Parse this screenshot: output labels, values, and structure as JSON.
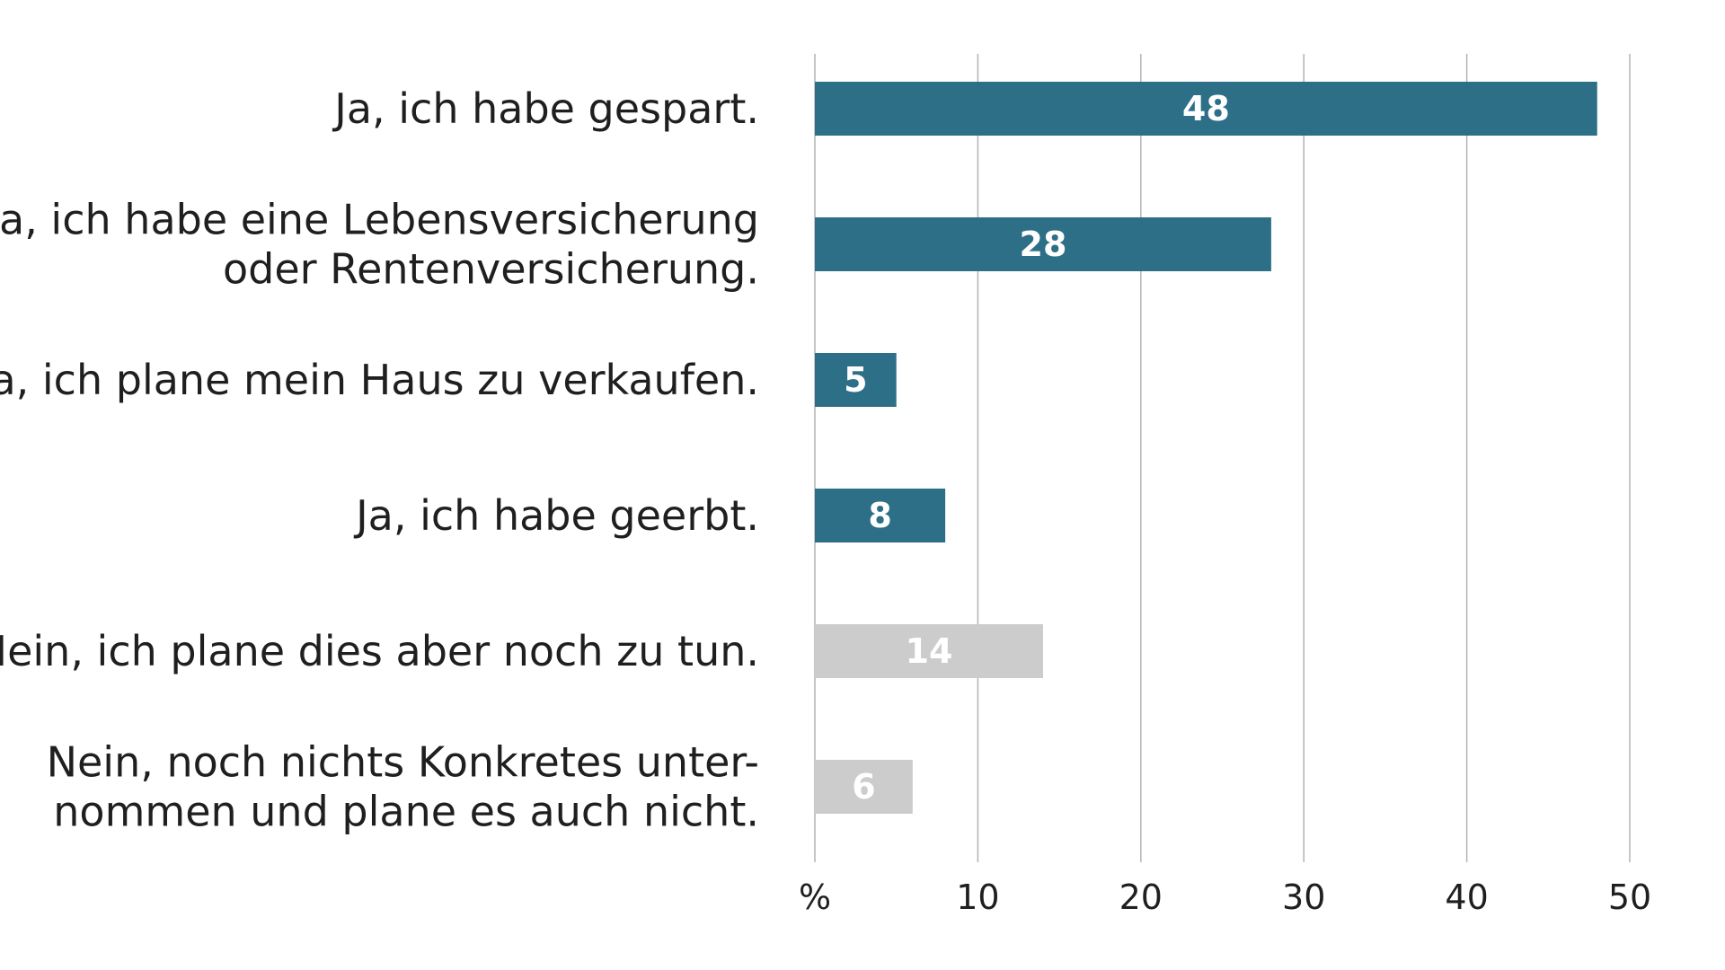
{
  "chart_data": {
    "type": "bar",
    "orientation": "horizontal",
    "categories": [
      [
        "Ja, ich habe gespart."
      ],
      [
        "Ja, ich habe eine Lebensversicherung",
        "oder Rentenversicherung."
      ],
      [
        "Ja, ich plane mein Haus zu verkaufen."
      ],
      [
        "Ja, ich habe geerbt."
      ],
      [
        "Nein, ich plane dies aber noch zu tun."
      ],
      [
        "Nein, noch nichts Konkretes unter-",
        "nommen und plane es auch nicht."
      ]
    ],
    "values": [
      48,
      28,
      5,
      8,
      14,
      6
    ],
    "bar_colors": [
      "#2e6f88",
      "#2e6f88",
      "#2e6f88",
      "#2e6f88",
      "#cccccc",
      "#cccccc"
    ],
    "xlim": [
      0,
      50
    ],
    "x_ticks": [
      0,
      10,
      20,
      30,
      40,
      50
    ],
    "x_tick_labels": [
      "%",
      "10",
      "20",
      "30",
      "40",
      "50"
    ],
    "grid": true,
    "legend": "none"
  }
}
